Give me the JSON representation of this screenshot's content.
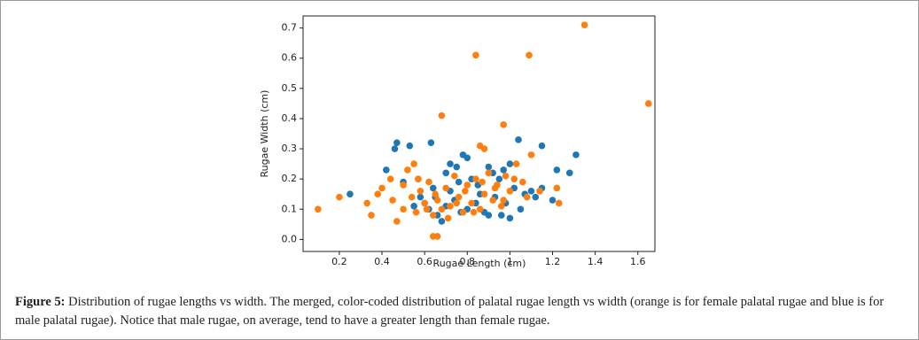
{
  "chart_data": {
    "type": "scatter",
    "xlabel": "Rugae Length (cm)",
    "ylabel": "Rugae Width (cm)",
    "xlim": [
      0.03,
      1.68
    ],
    "ylim": [
      -0.04,
      0.74
    ],
    "xticks": [
      0.2,
      0.4,
      0.6,
      0.8,
      1.0,
      1.2,
      1.4,
      1.6
    ],
    "yticks": [
      {
        "value": 0,
        "label": "0.0"
      },
      0.1,
      0.2,
      0.3,
      0.4,
      0.5,
      0.6,
      0.7
    ],
    "series": [
      {
        "name": "male",
        "color": "#1f77b4",
        "x": [
          0.25,
          0.42,
          0.46,
          0.47,
          0.53,
          0.57,
          0.63,
          0.65,
          0.7,
          0.72,
          0.75,
          0.78,
          0.8,
          0.82,
          0.85,
          0.9,
          0.92,
          0.95,
          0.97,
          1.0,
          1.02,
          1.04,
          1.07,
          1.1,
          1.12,
          1.15,
          1.15,
          1.2,
          1.22,
          1.28,
          1.31,
          0.68,
          0.96,
          1.0,
          0.6,
          0.62,
          0.66,
          0.7,
          0.74,
          0.77,
          0.8,
          0.84,
          0.88,
          0.93,
          0.98,
          1.05,
          0.5,
          0.55,
          0.58,
          0.72,
          0.86,
          0.9,
          0.76,
          0.64
        ],
        "y": [
          0.15,
          0.23,
          0.3,
          0.32,
          0.31,
          0.2,
          0.32,
          0.14,
          0.22,
          0.25,
          0.24,
          0.28,
          0.27,
          0.2,
          0.18,
          0.24,
          0.22,
          0.2,
          0.23,
          0.25,
          0.17,
          0.33,
          0.15,
          0.16,
          0.14,
          0.31,
          0.17,
          0.13,
          0.23,
          0.22,
          0.28,
          0.06,
          0.08,
          0.07,
          0.12,
          0.1,
          0.08,
          0.11,
          0.13,
          0.09,
          0.1,
          0.12,
          0.09,
          0.14,
          0.12,
          0.1,
          0.19,
          0.11,
          0.14,
          0.16,
          0.15,
          0.08,
          0.19,
          0.17
        ]
      },
      {
        "name": "female",
        "color": "#ff7f0e",
        "x": [
          1.35,
          0.84,
          1.09,
          1.65,
          0.68,
          0.97,
          0.1,
          0.2,
          0.64,
          0.66,
          0.86,
          0.88,
          1.1,
          1.22,
          1.23,
          0.55,
          0.33,
          0.35,
          0.38,
          0.4,
          0.44,
          0.47,
          0.5,
          0.52,
          0.54,
          0.56,
          0.58,
          0.6,
          0.62,
          0.64,
          0.66,
          0.68,
          0.7,
          0.72,
          0.74,
          0.76,
          0.78,
          0.8,
          0.82,
          0.84,
          0.86,
          0.88,
          0.9,
          0.92,
          0.94,
          0.96,
          0.98,
          1.0,
          1.03,
          1.06,
          1.08,
          1.14,
          0.45,
          0.5,
          0.57,
          0.61,
          0.65,
          0.71,
          0.75,
          0.79,
          0.83,
          0.87,
          0.93,
          0.97,
          1.02
        ],
        "y": [
          0.71,
          0.61,
          0.61,
          0.45,
          0.41,
          0.38,
          0.1,
          0.14,
          0.01,
          0.01,
          0.31,
          0.3,
          0.28,
          0.17,
          0.12,
          0.25,
          0.12,
          0.08,
          0.15,
          0.17,
          0.2,
          0.06,
          0.1,
          0.23,
          0.14,
          0.09,
          0.16,
          0.12,
          0.19,
          0.08,
          0.13,
          0.1,
          0.17,
          0.11,
          0.21,
          0.14,
          0.09,
          0.18,
          0.12,
          0.2,
          0.1,
          0.15,
          0.22,
          0.13,
          0.18,
          0.11,
          0.21,
          0.16,
          0.25,
          0.19,
          0.14,
          0.16,
          0.13,
          0.18,
          0.2,
          0.1,
          0.15,
          0.07,
          0.12,
          0.16,
          0.09,
          0.19,
          0.17,
          0.13,
          0.2
        ]
      }
    ]
  },
  "figure": {
    "label": "Figure 5:",
    "caption": "Distribution of rugae lengths vs width. The merged, color-coded distribution of palatal rugae length vs width (orange is for female palatal rugae and blue is for male palatal rugae). Notice that male rugae, on average, tend to have a greater length than female rugae."
  }
}
